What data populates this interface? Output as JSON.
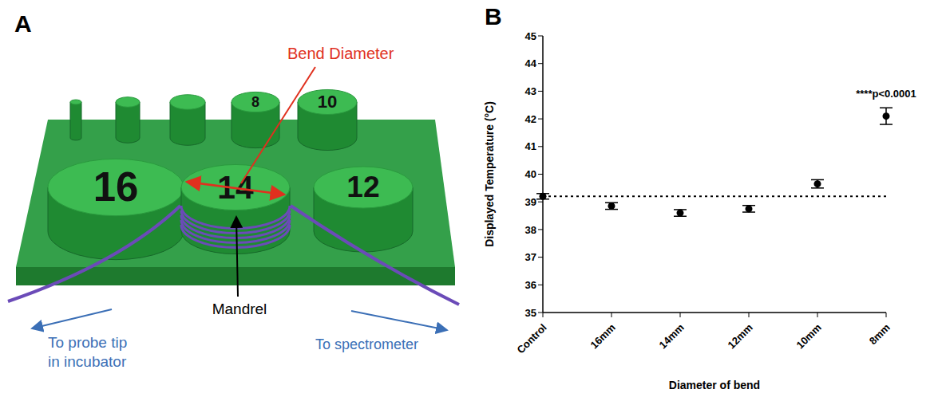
{
  "panel_labels": [
    "A",
    "B"
  ],
  "diagram": {
    "front_labels": [
      "16",
      "14",
      "12"
    ],
    "back_labels": [
      "8",
      "10"
    ],
    "bend_label": "Bend Diameter",
    "mandrel_label": "Mandrel",
    "left_lead": [
      "To probe tip",
      "in incubator"
    ],
    "right_lead": [
      "To spectrometer"
    ]
  },
  "chart_data": {
    "type": "scatter",
    "xlabel": "Diameter of bend",
    "ylabel": "Displayed Temperature (°C)",
    "categories": [
      "Control",
      "16mm",
      "14mm",
      "12mm",
      "10mm",
      "8mm"
    ],
    "values": [
      39.2,
      38.85,
      38.6,
      38.75,
      39.65,
      42.1
    ],
    "errors": [
      0.1,
      0.12,
      0.12,
      0.12,
      0.15,
      0.3
    ],
    "reference_line": 39.2,
    "ylim": [
      35,
      45
    ],
    "yticks": [
      35,
      36,
      37,
      38,
      39,
      40,
      41,
      42,
      43,
      44,
      45
    ],
    "annotations": [
      {
        "text": "****p<0.0001",
        "category": "8mm"
      }
    ],
    "color": "#000000",
    "marker": "circle",
    "grid": false
  }
}
